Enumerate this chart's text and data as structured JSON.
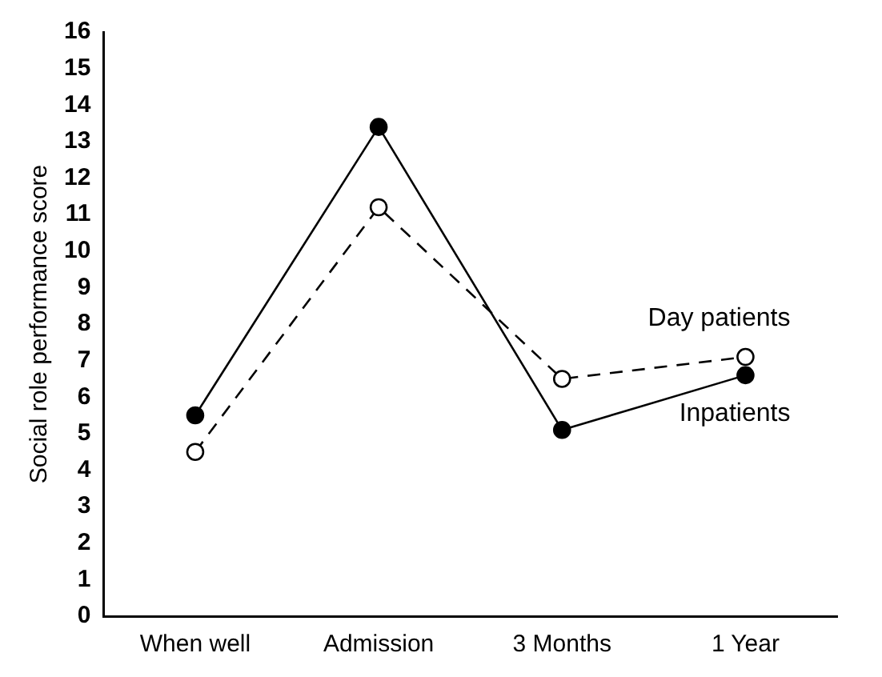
{
  "chart_data": {
    "type": "line",
    "ylabel": "Social role performance score",
    "categories": [
      "When well",
      "Admission",
      "3 Months",
      "1 Year"
    ],
    "ylim": [
      0,
      16
    ],
    "yticks": [
      0,
      1,
      2,
      3,
      4,
      5,
      6,
      7,
      8,
      9,
      10,
      11,
      12,
      13,
      14,
      15,
      16
    ],
    "grid": false,
    "legend": false,
    "marker": "circle",
    "series": [
      {
        "name": "Inpatients",
        "color": "#000000",
        "line_style": "solid",
        "values": [
          5.5,
          13.4,
          5.1,
          6.6
        ]
      },
      {
        "name": "Day patients",
        "color": "#000000",
        "line_style": "dashed",
        "values": [
          4.5,
          11.2,
          6.5,
          7.1
        ]
      }
    ]
  }
}
